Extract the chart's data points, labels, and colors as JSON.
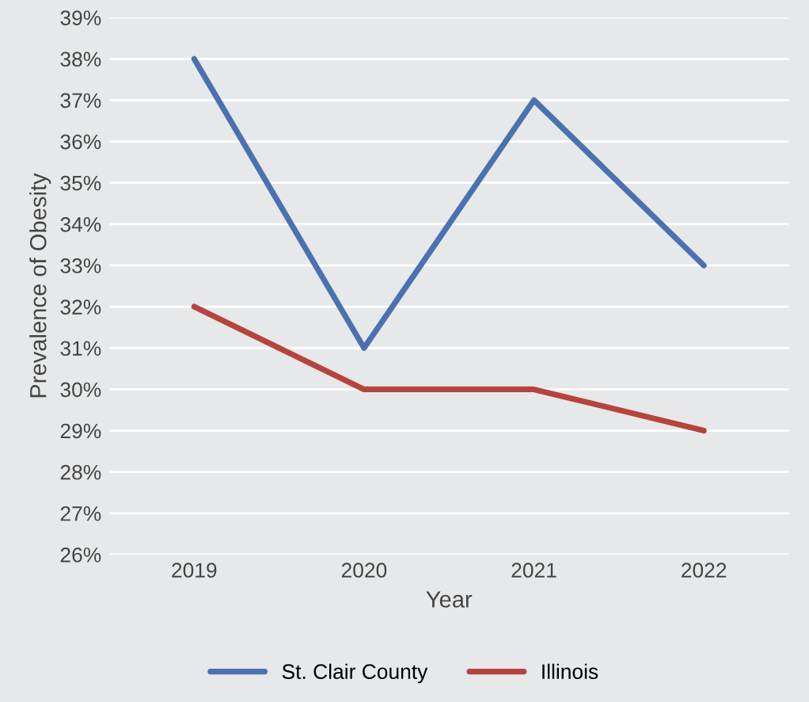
{
  "chart_data": {
    "type": "line",
    "xlabel": "Year",
    "ylabel": "Prevalence of Obesity",
    "categories": [
      "2019",
      "2020",
      "2021",
      "2022"
    ],
    "series": [
      {
        "name": "St. Clair County",
        "color": "#4a72b0",
        "values": [
          38,
          31,
          37,
          33
        ]
      },
      {
        "name": "Illinois",
        "color": "#b5443f",
        "values": [
          32,
          30,
          30,
          29
        ]
      }
    ],
    "ylim": [
      26,
      39
    ],
    "yticks": [
      {
        "value": 26,
        "label": "26%"
      },
      {
        "value": 27,
        "label": "27%"
      },
      {
        "value": 28,
        "label": "28%"
      },
      {
        "value": 29,
        "label": "29%"
      },
      {
        "value": 30,
        "label": "30%"
      },
      {
        "value": 31,
        "label": "31%"
      },
      {
        "value": 32,
        "label": "32%"
      },
      {
        "value": 33,
        "label": "33%"
      },
      {
        "value": 34,
        "label": "34%"
      },
      {
        "value": 35,
        "label": "35%"
      },
      {
        "value": 36,
        "label": "36%"
      },
      {
        "value": 37,
        "label": "37%"
      },
      {
        "value": 38,
        "label": "38%"
      },
      {
        "value": 39,
        "label": "39%"
      }
    ],
    "grid": "y",
    "legend": "bottom",
    "marker": "none",
    "line_style": "solid"
  }
}
